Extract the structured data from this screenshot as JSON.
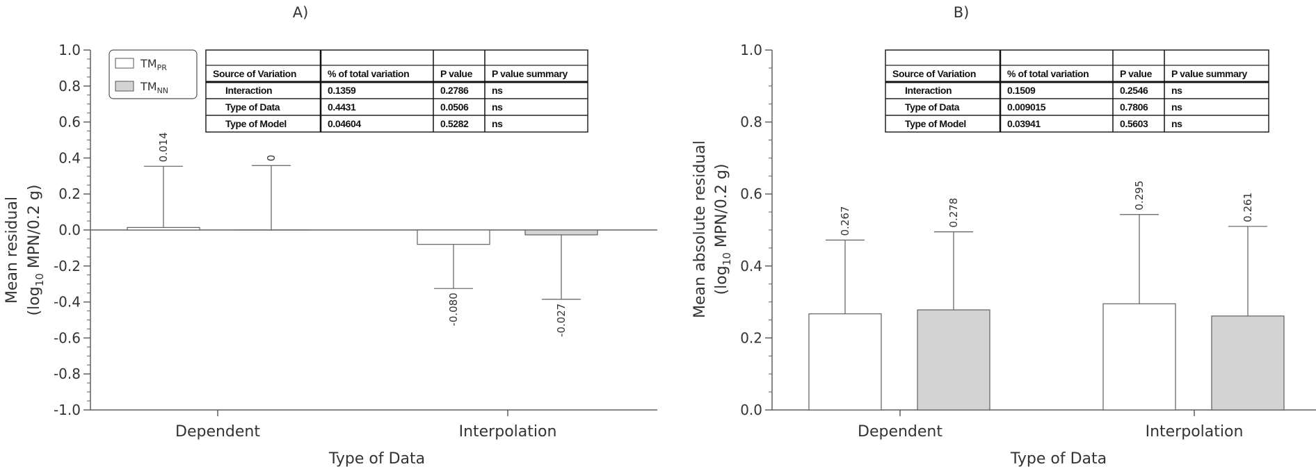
{
  "colors": {
    "tm_pr": "#ffffff",
    "tm_nn": "#d3d3d3",
    "axis": "#5f5f5f",
    "text": "#333333"
  },
  "legend": {
    "items": [
      {
        "base": "TM",
        "sub": "PR",
        "color_key": "tm_pr"
      },
      {
        "base": "TM",
        "sub": "NN",
        "color_key": "tm_nn"
      }
    ]
  },
  "chart_data": [
    {
      "type": "bar",
      "panel_label": "A)",
      "categories": [
        "Dependent",
        "Interpolation"
      ],
      "series": [
        {
          "name": "TM_PR",
          "values": [
            0.014,
            -0.08
          ],
          "error": [
            0.34,
            0.245
          ],
          "labels": [
            "0.014",
            "-0.080"
          ]
        },
        {
          "name": "TM_NN",
          "values": [
            0.0,
            -0.027
          ],
          "error": [
            0.358,
            0.358
          ],
          "labels": [
            "0",
            "-0.027"
          ]
        }
      ],
      "xlabel": "Type of Data",
      "ylabel_line1": "Mean residual",
      "ylabel_prefix": "(log",
      "ylabel_sub": "10",
      "ylabel_suffix": " MPN/0.2 g)",
      "ylim": [
        -1.0,
        1.0
      ],
      "yticks": [
        "-1.0",
        "-0.8",
        "-0.6",
        "-0.4",
        "-0.2",
        "0.0",
        "0.2",
        "0.4",
        "0.6",
        "0.8",
        "1.0"
      ],
      "legend_position": "top-left",
      "table": {
        "header": [
          "Source of Variation",
          "% of total variation",
          "P value",
          "P value summary"
        ],
        "rows": [
          [
            "Interaction",
            "0.1359",
            "0.2786",
            "ns"
          ],
          [
            "Type of Data",
            "0.4431",
            "0.0506",
            "ns"
          ],
          [
            "Type of Model",
            "0.04604",
            "0.5282",
            "ns"
          ]
        ]
      }
    },
    {
      "type": "bar",
      "panel_label": "B)",
      "categories": [
        "Dependent",
        "Interpolation"
      ],
      "series": [
        {
          "name": "TM_PR",
          "values": [
            0.267,
            0.295
          ],
          "error": [
            0.205,
            0.248
          ],
          "labels": [
            "0.267",
            "0.295"
          ]
        },
        {
          "name": "TM_NN",
          "values": [
            0.278,
            0.261
          ],
          "error": [
            0.217,
            0.249
          ],
          "labels": [
            "0.278",
            "0.261"
          ]
        }
      ],
      "xlabel": "Type of Data",
      "ylabel_line1": "Mean absolute residual",
      "ylabel_prefix": "(log",
      "ylabel_sub": "10",
      "ylabel_suffix": " MPN/0.2 g)",
      "ylim": [
        0.0,
        1.0
      ],
      "yticks": [
        "0.0",
        "0.2",
        "0.4",
        "0.6",
        "0.8",
        "1.0"
      ],
      "table": {
        "header": [
          "Source of Variation",
          "% of total variation",
          "P value",
          "P value summary"
        ],
        "rows": [
          [
            "Interaction",
            "0.1509",
            "0.2546",
            "ns"
          ],
          [
            "Type of Data",
            "0.009015",
            "0.7806",
            "ns"
          ],
          [
            "Type of Model",
            "0.03941",
            "0.5603",
            "ns"
          ]
        ]
      }
    }
  ]
}
